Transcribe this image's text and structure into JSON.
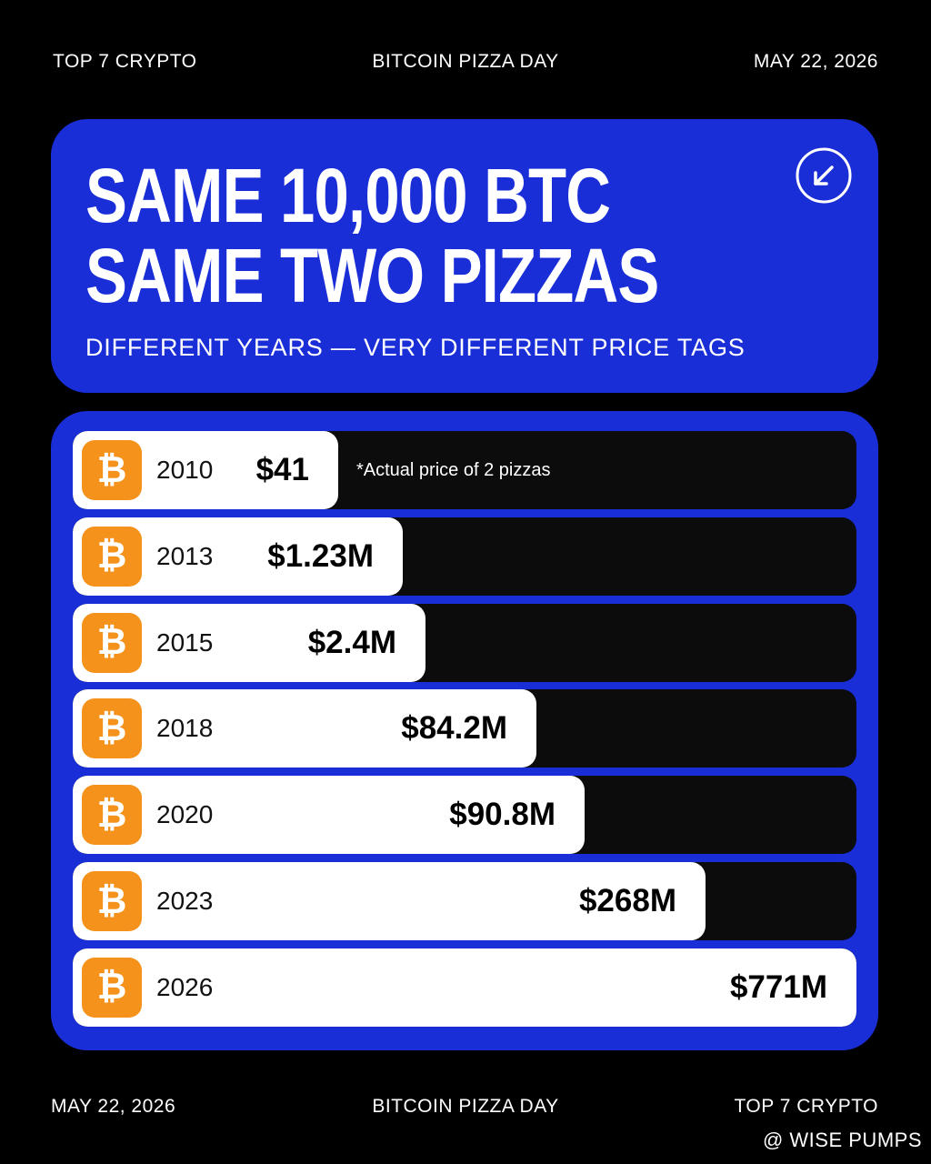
{
  "header": {
    "left": "TOP 7 CRYPTO",
    "center": "BITCOIN PIZZA DAY",
    "right": "MAY 22, 2026"
  },
  "card": {
    "title_lines": [
      "SAME 10,000 BTC",
      "SAME TWO PIZZAS"
    ],
    "subtitle": "DIFFERENT YEARS — VERY DIFFERENT PRICE TAGS"
  },
  "icon": "₿",
  "rows": [
    {
      "year": "2010",
      "price": "$41"
    },
    {
      "year": "2013",
      "price": "$1.23M"
    },
    {
      "year": "2015",
      "price": "$2.4M"
    },
    {
      "year": "2018",
      "price": "$84.2M"
    },
    {
      "year": "2020",
      "price": "$90.8M"
    },
    {
      "year": "2023",
      "price": "$268M"
    },
    {
      "year": "2026",
      "price": "$771M"
    }
  ],
  "note": "*Actual price of 2 pizzas",
  "footer": {
    "left": "MAY 22, 2026",
    "center": "BITCOIN PIZZA DAY",
    "right": "TOP 7 CRYPTO"
  },
  "watermark": "@ WISE PUMPS"
}
